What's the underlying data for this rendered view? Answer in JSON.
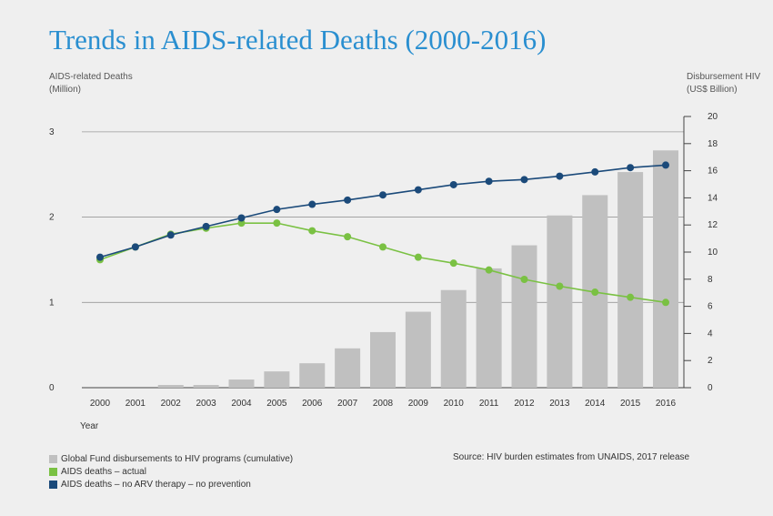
{
  "title": "Trends in AIDS-related Deaths (2000-2016)",
  "left_axis": {
    "label_line1": "AIDS-related Deaths",
    "label_line2": "(Million)"
  },
  "right_axis": {
    "label_line1": "Disbursement HIV",
    "label_line2": "(US$ Billion)"
  },
  "x_axis_label": "Year",
  "source": "Source: HIV burden estimates from UNAIDS, 2017 release",
  "legend": [
    {
      "label": "Global Fund disbursements to HIV programs (cumulative)",
      "color": "#c0c0c0"
    },
    {
      "label": "AIDS deaths – actual",
      "color": "#7ac143"
    },
    {
      "label": "AIDS deaths – no ARV therapy – no prevention",
      "color": "#1b4a7a"
    }
  ],
  "chart_data": {
    "type": "bar+line",
    "categories": [
      "2000",
      "2001",
      "2002",
      "2003",
      "2004",
      "2005",
      "2006",
      "2007",
      "2008",
      "2009",
      "2010",
      "2011",
      "2012",
      "2013",
      "2014",
      "2015",
      "2016"
    ],
    "y_left": {
      "ticks": [
        0,
        1,
        2,
        3
      ],
      "ylim": [
        0,
        3.18
      ]
    },
    "y_right": {
      "ticks": [
        0,
        2,
        4,
        6,
        8,
        10,
        12,
        14,
        16,
        18,
        20
      ],
      "ylim": [
        0,
        20
      ]
    },
    "bars": {
      "name": "Global Fund disbursements to HIV programs (cumulative)",
      "axis": "right",
      "color": "#c0c0c0",
      "values": [
        0,
        0,
        0.2,
        0.2,
        0.6,
        1.2,
        1.8,
        2.9,
        4.1,
        5.6,
        7.2,
        8.8,
        10.5,
        12.7,
        14.2,
        15.9,
        17.5
      ]
    },
    "series": [
      {
        "name": "AIDS deaths – actual",
        "axis": "left",
        "color": "#7ac143",
        "values": [
          1.5,
          1.65,
          1.8,
          1.87,
          1.93,
          1.93,
          1.84,
          1.77,
          1.65,
          1.53,
          1.46,
          1.38,
          1.27,
          1.19,
          1.12,
          1.06,
          1.0
        ]
      },
      {
        "name": "AIDS deaths – no ARV therapy – no prevention",
        "axis": "left",
        "color": "#1b4a7a",
        "values": [
          1.53,
          1.65,
          1.79,
          1.89,
          1.99,
          2.09,
          2.15,
          2.2,
          2.26,
          2.32,
          2.38,
          2.42,
          2.44,
          2.48,
          2.53,
          2.58,
          2.61
        ]
      }
    ],
    "grid": true
  }
}
